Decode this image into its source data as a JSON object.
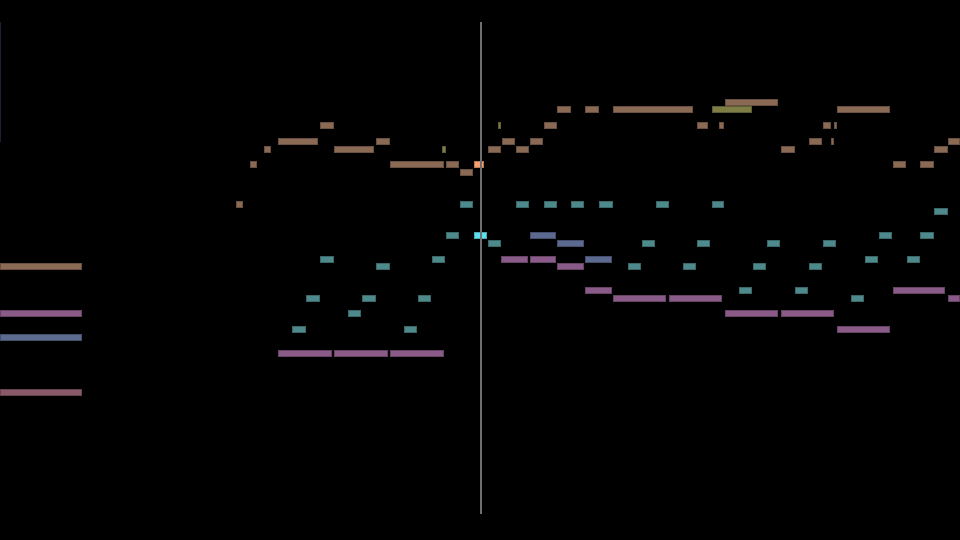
{
  "view": {
    "type": "piano-roll",
    "time_unit": "beats",
    "playhead_time": 0,
    "background": "#000000",
    "playhead_color": "#6f6f6f"
  },
  "tracks": [
    {
      "id": "brown",
      "color": "#8b6a55",
      "active_color": "#f4a070",
      "notes": [
        [
          -17.15,
          -14.2,
          59
        ],
        [
          -8.7,
          -8.45,
          67
        ],
        [
          -8.2,
          -7.95,
          72
        ],
        [
          -7.7,
          -7.45,
          74
        ],
        [
          -7.2,
          -5.8,
          75
        ],
        [
          -5.7,
          -5.2,
          77
        ],
        [
          -5.2,
          -3.8,
          74
        ],
        [
          -3.7,
          -3.2,
          75
        ],
        [
          -3.2,
          -1.3,
          72
        ],
        [
          -1.2,
          -0.75,
          72
        ],
        [
          -0.7,
          -0.25,
          71
        ],
        [
          -0.2,
          0.15,
          72
        ],
        [
          0.3,
          0.75,
          74
        ],
        [
          0.8,
          1.25,
          75
        ],
        [
          1.3,
          1.75,
          74
        ],
        [
          1.8,
          2.25,
          75
        ],
        [
          2.3,
          2.75,
          77
        ],
        [
          2.75,
          3.25,
          79
        ],
        [
          3.75,
          4.25,
          79
        ],
        [
          4.75,
          7.6,
          79
        ],
        [
          7.75,
          8.15,
          77
        ],
        [
          8.55,
          8.7,
          77
        ],
        [
          8.75,
          10.65,
          80
        ],
        [
          10.75,
          11.25,
          74
        ],
        [
          11.75,
          12.2,
          75
        ],
        [
          12.25,
          12.55,
          77
        ],
        [
          12.55,
          12.65,
          75
        ],
        [
          12.65,
          12.75,
          77
        ],
        [
          12.75,
          14.65,
          79
        ],
        [
          14.75,
          15.2,
          72
        ],
        [
          15.7,
          16.2,
          72
        ],
        [
          16.2,
          16.7,
          74
        ],
        [
          16.7,
          17.15,
          75
        ]
      ]
    },
    {
      "id": "olive",
      "color": "#7d7d45",
      "active_color": "#c8c870",
      "notes": [
        [
          -1.35,
          -1.2,
          74
        ],
        [
          0.65,
          0.75,
          77
        ],
        [
          8.3,
          9.7,
          79
        ]
      ]
    },
    {
      "id": "teal",
      "color": "#4e8a8c",
      "active_color": "#5fdfef",
      "notes": [
        [
          -6.7,
          -6.2,
          51
        ],
        [
          -6.2,
          -5.7,
          55
        ],
        [
          -5.7,
          -5.2,
          60
        ],
        [
          -4.7,
          -4.25,
          53
        ],
        [
          -4.2,
          -3.7,
          55
        ],
        [
          -3.7,
          -3.2,
          59
        ],
        [
          -2.7,
          -2.25,
          51
        ],
        [
          -2.2,
          -1.75,
          55
        ],
        [
          -1.7,
          -1.25,
          60
        ],
        [
          -1.2,
          -0.75,
          63
        ],
        [
          -0.7,
          -0.25,
          67
        ],
        [
          -0.2,
          0.25,
          63
        ],
        [
          0.3,
          0.75,
          62
        ],
        [
          1.3,
          1.75,
          67
        ],
        [
          2.3,
          2.75,
          67
        ],
        [
          3.25,
          3.7,
          67
        ],
        [
          4.25,
          4.75,
          67
        ],
        [
          5.3,
          5.75,
          59
        ],
        [
          5.8,
          6.25,
          62
        ],
        [
          6.3,
          6.75,
          67
        ],
        [
          7.25,
          7.7,
          59
        ],
        [
          7.75,
          8.2,
          62
        ],
        [
          8.3,
          8.7,
          67
        ],
        [
          9.25,
          9.7,
          56
        ],
        [
          9.75,
          10.2,
          59
        ],
        [
          10.25,
          10.7,
          62
        ],
        [
          11.25,
          11.7,
          56
        ],
        [
          11.75,
          12.2,
          59
        ],
        [
          12.25,
          12.7,
          62
        ],
        [
          13.25,
          13.7,
          55
        ],
        [
          13.75,
          14.2,
          60
        ],
        [
          14.25,
          14.7,
          63
        ],
        [
          15.25,
          15.7,
          60
        ],
        [
          15.7,
          16.2,
          63
        ],
        [
          16.2,
          16.7,
          66
        ]
      ]
    },
    {
      "id": "blue-gray",
      "color": "#5c6a90",
      "active_color": "#8fa0e0",
      "notes": [
        [
          -17.15,
          -14.2,
          50
        ],
        [
          1.8,
          2.7,
          63
        ],
        [
          2.75,
          3.7,
          62
        ],
        [
          3.75,
          4.7,
          60
        ]
      ]
    },
    {
      "id": "purple",
      "color": "#8a5a88",
      "active_color": "#d890d0",
      "notes": [
        [
          -17.15,
          -14.2,
          53
        ],
        [
          -7.2,
          -5.3,
          48
        ],
        [
          -5.2,
          -3.3,
          48
        ],
        [
          -3.2,
          -1.3,
          48
        ],
        [
          0.75,
          1.7,
          60
        ],
        [
          1.8,
          2.7,
          60
        ],
        [
          2.75,
          3.7,
          59
        ],
        [
          3.75,
          4.7,
          56
        ],
        [
          4.75,
          6.65,
          55
        ],
        [
          6.75,
          8.65,
          55
        ],
        [
          8.75,
          10.65,
          53
        ],
        [
          10.75,
          12.65,
          53
        ],
        [
          12.75,
          14.65,
          51
        ],
        [
          14.75,
          16.6,
          56
        ],
        [
          16.7,
          17.15,
          55
        ]
      ]
    },
    {
      "id": "rose",
      "color": "#8a5a68",
      "active_color": "#d890a0",
      "notes": [
        [
          -17.15,
          -14.2,
          43
        ]
      ]
    }
  ]
}
